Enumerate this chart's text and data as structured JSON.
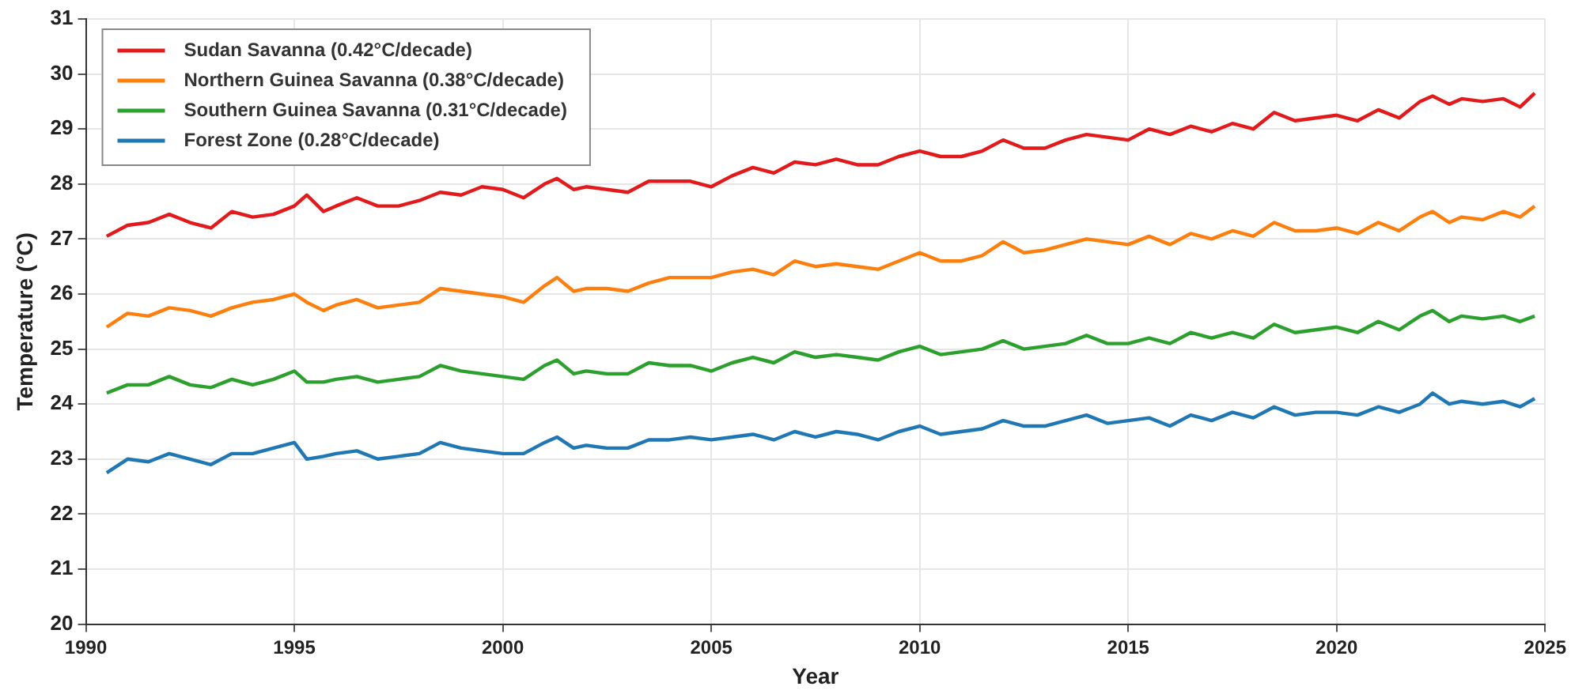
{
  "chart_data": {
    "type": "line",
    "xlabel": "Year",
    "ylabel": "Temperature (°C)",
    "xlim": [
      1990,
      2025
    ],
    "xticks": [
      1990,
      1995,
      2000,
      2005,
      2010,
      2015,
      2020,
      2025
    ],
    "ylim": [
      20,
      31
    ],
    "yticks": [
      20,
      21,
      22,
      23,
      24,
      25,
      26,
      27,
      28,
      29,
      30,
      31
    ],
    "grid": true,
    "legend": "top left",
    "marker": "none",
    "line_style": "solid",
    "x": [
      1990.5,
      1991,
      1991.5,
      1992,
      1992.5,
      1993,
      1993.5,
      1994,
      1994.5,
      1995,
      1995.3,
      1995.7,
      1996,
      1996.5,
      1997,
      1997.5,
      1998,
      1998.5,
      1999,
      1999.5,
      2000,
      2000.5,
      2001,
      2001.3,
      2001.7,
      2002,
      2002.5,
      2003,
      2003.5,
      2004,
      2004.5,
      2005,
      2005.5,
      2006,
      2006.5,
      2007,
      2007.5,
      2008,
      2008.5,
      2009,
      2009.5,
      2010,
      2010.5,
      2011,
      2011.5,
      2012,
      2012.5,
      2013,
      2013.5,
      2014,
      2014.5,
      2015,
      2015.5,
      2016,
      2016.5,
      2017,
      2017.5,
      2018,
      2018.5,
      2019,
      2019.5,
      2020,
      2020.5,
      2021,
      2021.5,
      2022,
      2022.3,
      2022.7,
      2023,
      2023.5,
      2024,
      2024.4,
      2024.75
    ],
    "series": [
      {
        "name": "Sudan Savanna (0.42°C/decade)",
        "color": "#e31a1c",
        "values": [
          27.05,
          27.25,
          27.3,
          27.45,
          27.3,
          27.2,
          27.5,
          27.4,
          27.45,
          27.6,
          27.8,
          27.5,
          27.6,
          27.75,
          27.6,
          27.6,
          27.7,
          27.85,
          27.8,
          27.95,
          27.9,
          27.75,
          28.0,
          28.1,
          27.9,
          27.95,
          27.9,
          27.85,
          28.05,
          28.05,
          28.05,
          27.95,
          28.15,
          28.3,
          28.2,
          28.4,
          28.35,
          28.45,
          28.35,
          28.35,
          28.5,
          28.6,
          28.5,
          28.5,
          28.6,
          28.8,
          28.65,
          28.65,
          28.8,
          28.9,
          28.85,
          28.8,
          29.0,
          28.9,
          29.05,
          28.95,
          29.1,
          29.0,
          29.3,
          29.15,
          29.2,
          29.25,
          29.15,
          29.35,
          29.2,
          29.5,
          29.6,
          29.45,
          29.55,
          29.5,
          29.55,
          29.4,
          29.65
        ]
      },
      {
        "name": "Northern Guinea Savanna (0.38°C/decade)",
        "color": "#ff7f0e",
        "values": [
          25.4,
          25.65,
          25.6,
          25.75,
          25.7,
          25.6,
          25.75,
          25.85,
          25.9,
          26.0,
          25.85,
          25.7,
          25.8,
          25.9,
          25.75,
          25.8,
          25.85,
          26.1,
          26.05,
          26.0,
          25.95,
          25.85,
          26.15,
          26.3,
          26.05,
          26.1,
          26.1,
          26.05,
          26.2,
          26.3,
          26.3,
          26.3,
          26.4,
          26.45,
          26.35,
          26.6,
          26.5,
          26.55,
          26.5,
          26.45,
          26.6,
          26.75,
          26.6,
          26.6,
          26.7,
          26.95,
          26.75,
          26.8,
          26.9,
          27.0,
          26.95,
          26.9,
          27.05,
          26.9,
          27.1,
          27.0,
          27.15,
          27.05,
          27.3,
          27.15,
          27.15,
          27.2,
          27.1,
          27.3,
          27.15,
          27.4,
          27.5,
          27.3,
          27.4,
          27.35,
          27.5,
          27.4,
          27.6
        ]
      },
      {
        "name": "Southern Guinea Savanna (0.31°C/decade)",
        "color": "#2ca02c",
        "values": [
          24.2,
          24.35,
          24.35,
          24.5,
          24.35,
          24.3,
          24.45,
          24.35,
          24.45,
          24.6,
          24.4,
          24.4,
          24.45,
          24.5,
          24.4,
          24.45,
          24.5,
          24.7,
          24.6,
          24.55,
          24.5,
          24.45,
          24.7,
          24.8,
          24.55,
          24.6,
          24.55,
          24.55,
          24.75,
          24.7,
          24.7,
          24.6,
          24.75,
          24.85,
          24.75,
          24.95,
          24.85,
          24.9,
          24.85,
          24.8,
          24.95,
          25.05,
          24.9,
          24.95,
          25.0,
          25.15,
          25.0,
          25.05,
          25.1,
          25.25,
          25.1,
          25.1,
          25.2,
          25.1,
          25.3,
          25.2,
          25.3,
          25.2,
          25.45,
          25.3,
          25.35,
          25.4,
          25.3,
          25.5,
          25.35,
          25.6,
          25.7,
          25.5,
          25.6,
          25.55,
          25.6,
          25.5,
          25.6
        ]
      },
      {
        "name": "Forest Zone (0.28°C/decade)",
        "color": "#1f77b4",
        "values": [
          22.75,
          23.0,
          22.95,
          23.1,
          23.0,
          22.9,
          23.1,
          23.1,
          23.2,
          23.3,
          23.0,
          23.05,
          23.1,
          23.15,
          23.0,
          23.05,
          23.1,
          23.3,
          23.2,
          23.15,
          23.1,
          23.1,
          23.3,
          23.4,
          23.2,
          23.25,
          23.2,
          23.2,
          23.35,
          23.35,
          23.4,
          23.35,
          23.4,
          23.45,
          23.35,
          23.5,
          23.4,
          23.5,
          23.45,
          23.35,
          23.5,
          23.6,
          23.45,
          23.5,
          23.55,
          23.7,
          23.6,
          23.6,
          23.7,
          23.8,
          23.65,
          23.7,
          23.75,
          23.6,
          23.8,
          23.7,
          23.85,
          23.75,
          23.95,
          23.8,
          23.85,
          23.85,
          23.8,
          23.95,
          23.85,
          24.0,
          24.2,
          24.0,
          24.05,
          24.0,
          24.05,
          23.95,
          24.1
        ]
      }
    ]
  }
}
